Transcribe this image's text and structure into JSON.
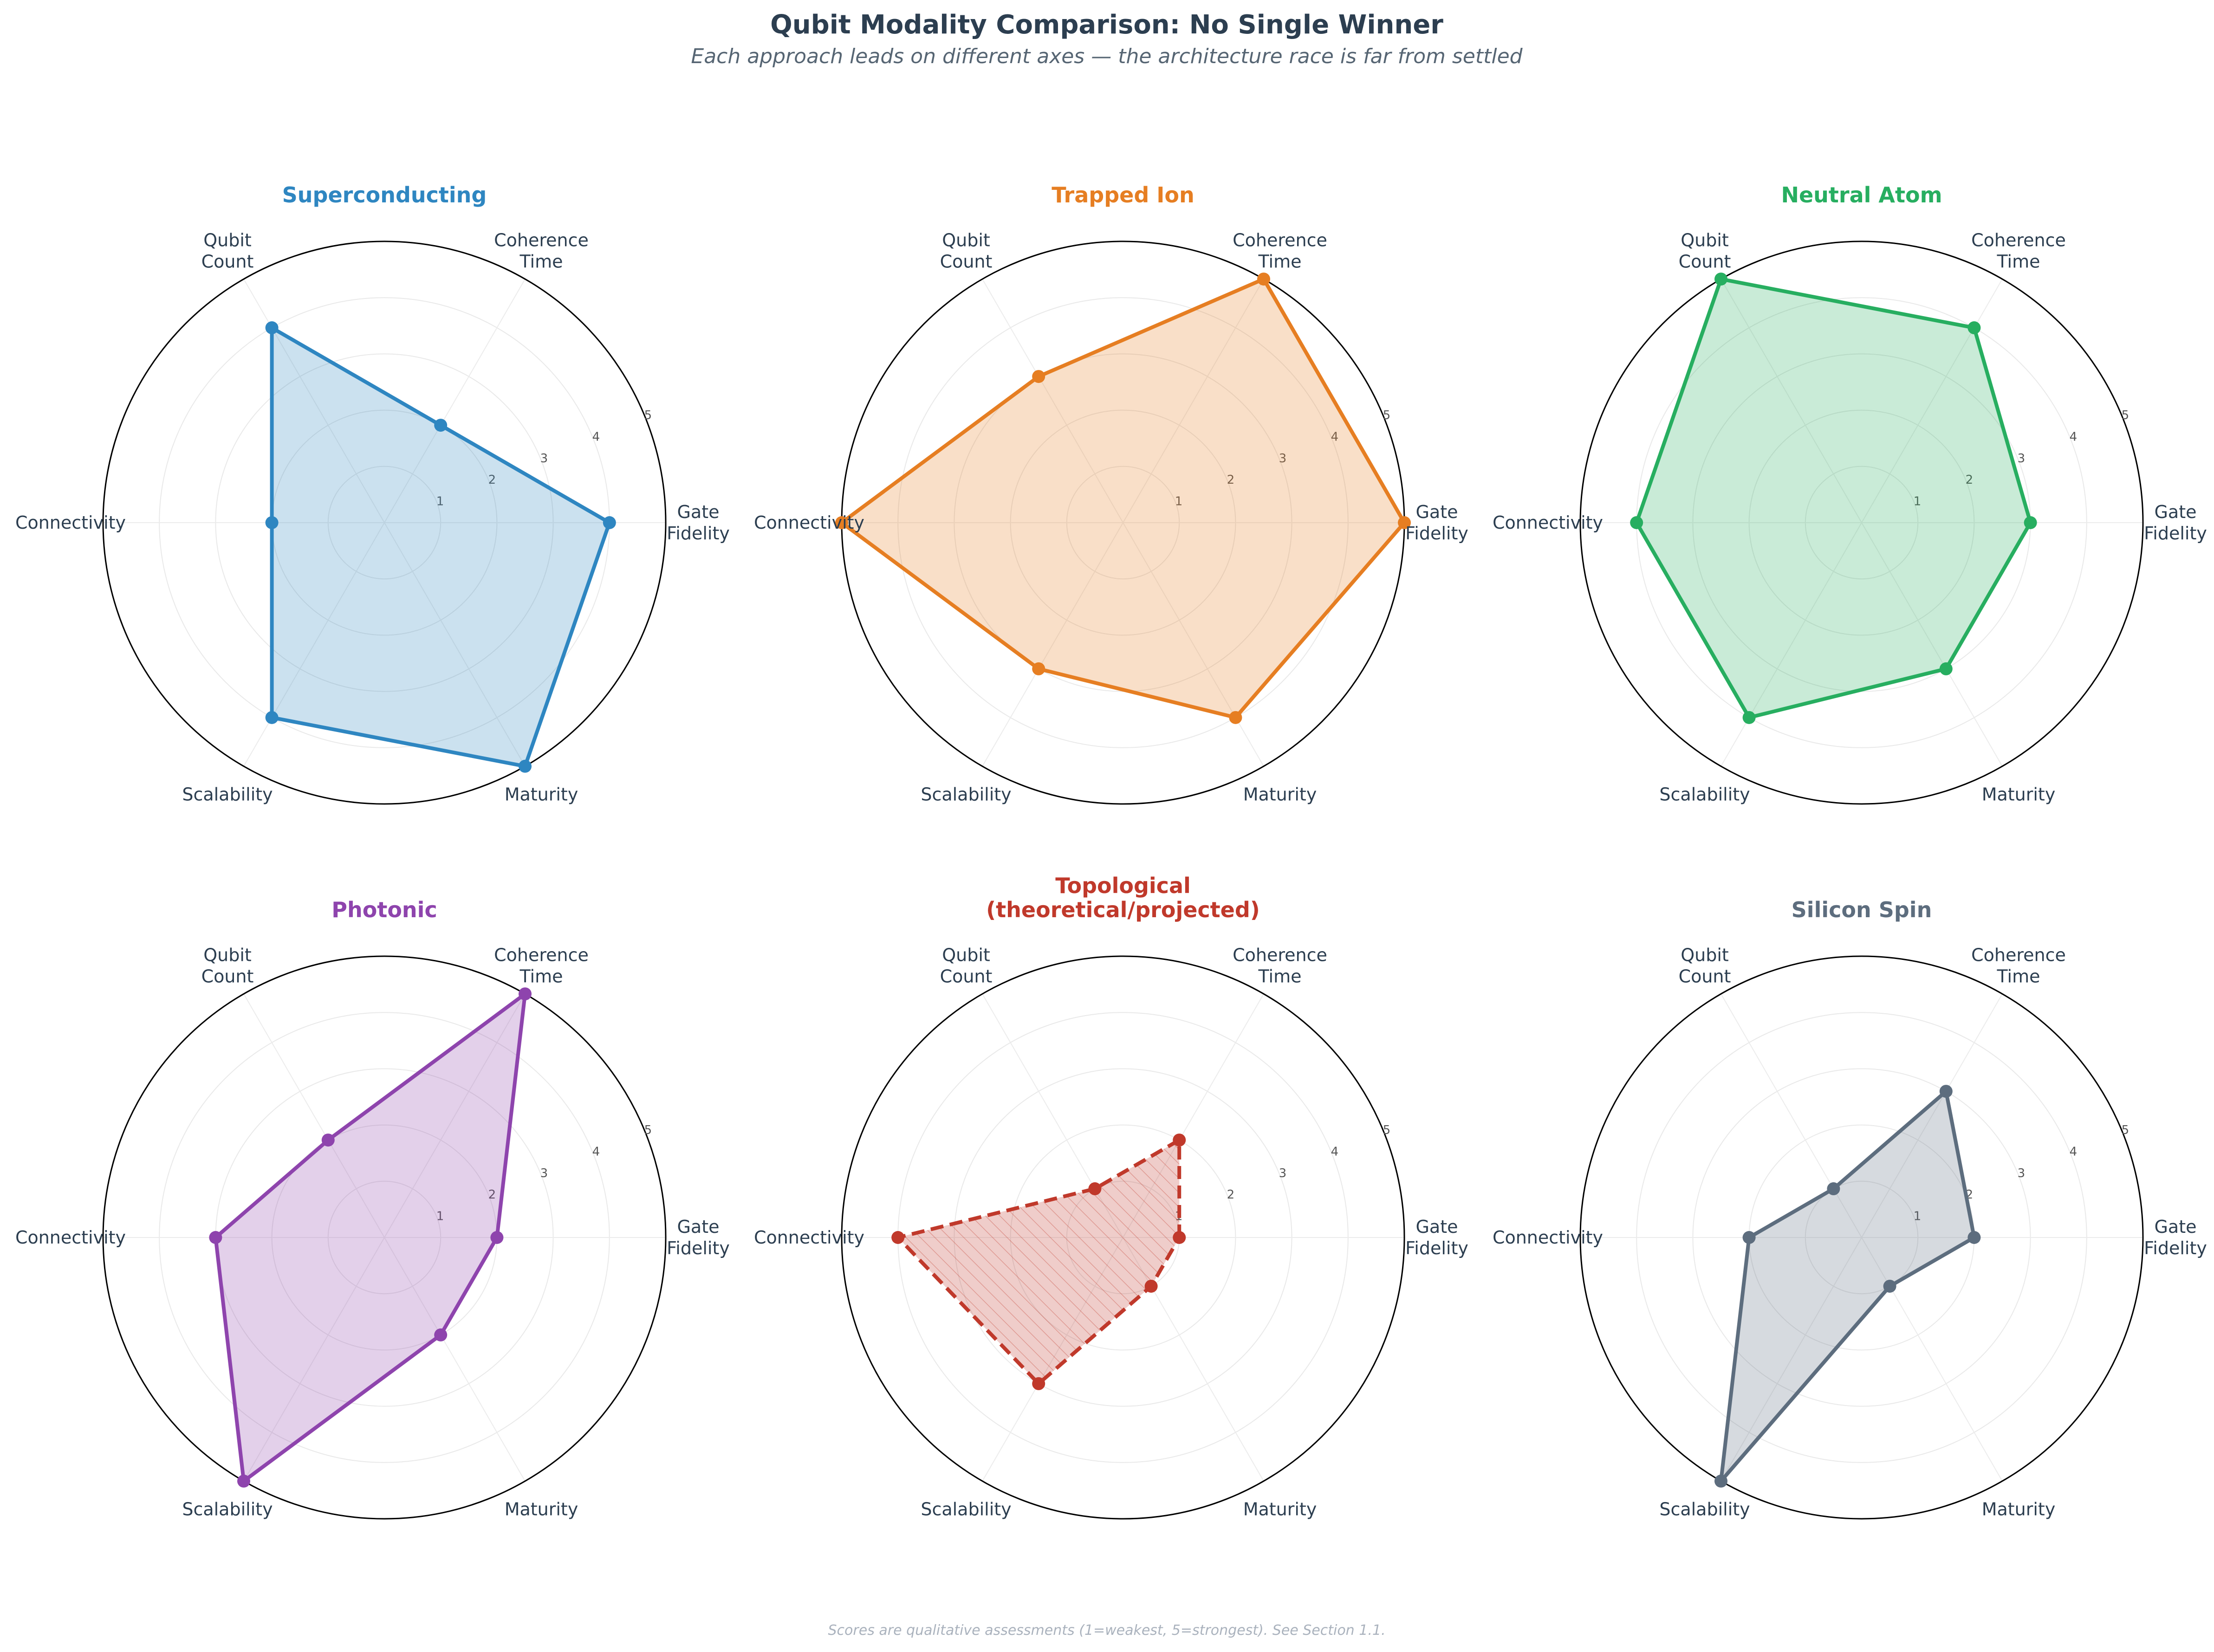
{
  "title": "Qubit Modality Comparison: No Single Winner",
  "subtitle": "Each approach leads on different axes — the architecture race is far from settled",
  "footnote": "Scores are qualitative assessments (1=weakest, 5=strongest). See Section 1.1.",
  "chart_data": {
    "type": "radar",
    "axes": [
      [
        "Gate",
        "Fidelity"
      ],
      [
        "Coherence",
        "Time"
      ],
      [
        "Qubit",
        "Count"
      ],
      [
        "Connectivity"
      ],
      [
        "Scalability"
      ],
      [
        "Maturity"
      ]
    ],
    "rlim": [
      0,
      5
    ],
    "rticks": [
      1,
      2,
      3,
      4,
      5
    ],
    "rtick_labels": [
      "1",
      "2",
      "3",
      "4",
      "5"
    ],
    "panels": [
      {
        "name": "Superconducting",
        "title_lines": [
          "Superconducting"
        ],
        "color": "#2e86c1",
        "dashed": false,
        "hatched": false,
        "values": [
          4,
          2,
          4,
          2,
          4,
          5
        ]
      },
      {
        "name": "Trapped Ion",
        "title_lines": [
          "Trapped Ion"
        ],
        "color": "#e67e22",
        "dashed": false,
        "hatched": false,
        "values": [
          5,
          5,
          3,
          5,
          3,
          4
        ]
      },
      {
        "name": "Neutral Atom",
        "title_lines": [
          "Neutral Atom"
        ],
        "color": "#27ae60",
        "dashed": false,
        "hatched": false,
        "values": [
          3,
          4,
          5,
          4,
          4,
          3
        ]
      },
      {
        "name": "Photonic",
        "title_lines": [
          "Photonic"
        ],
        "color": "#8e44ad",
        "dashed": false,
        "hatched": false,
        "values": [
          2,
          5,
          2,
          3,
          5,
          2
        ]
      },
      {
        "name": "Topological (theoretical/projected)",
        "title_lines": [
          "Topological",
          "(theoretical/projected)"
        ],
        "color": "#c0392b",
        "dashed": true,
        "hatched": true,
        "values": [
          1,
          2,
          1,
          4,
          3,
          1
        ]
      },
      {
        "name": "Silicon Spin",
        "title_lines": [
          "Silicon Spin"
        ],
        "color": "#5d6d7e",
        "dashed": false,
        "hatched": false,
        "values": [
          2,
          3,
          1,
          2,
          5,
          1
        ]
      }
    ]
  }
}
